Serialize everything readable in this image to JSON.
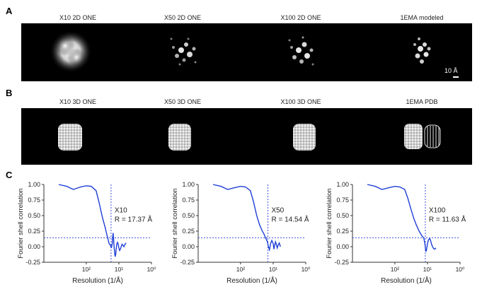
{
  "panels": {
    "a": {
      "letter": "A",
      "captions": [
        "X10 2D ONE",
        "X50 2D ONE",
        "X100 2D ONE",
        "1EMA modeled"
      ],
      "scale_bar_label": "10 Å"
    },
    "b": {
      "letter": "B",
      "captions": [
        "X10 3D ONE",
        "X50 3D ONE",
        "X100 3D ONE",
        "1EMA PDB"
      ]
    },
    "c": {
      "letter": "C"
    }
  },
  "colors": {
    "curve": "#1f3fd6",
    "threshold": "#3b4fd9",
    "strip": "#000000"
  },
  "chart_data": [
    {
      "type": "line",
      "title": "",
      "xlabel": "Resolution (1/Å)",
      "ylabel": "Fourier shell correlation",
      "xscale": "log",
      "xticks": [
        "10²",
        "10¹",
        "10⁰"
      ],
      "yticks": [
        "1.00",
        "0.75",
        "0.50",
        "0.25",
        "0.00",
        "-0.25"
      ],
      "ylim": [
        -0.25,
        1.0
      ],
      "annotation": {
        "name": "X10",
        "text": "R = 17.37 Å"
      },
      "threshold_y": 0.143,
      "cutoff_x": 17.37,
      "series": [
        {
          "x": [
            700,
            400,
            250,
            150,
            100,
            70,
            50,
            40,
            32,
            26,
            24,
            22,
            20,
            18,
            17,
            16,
            15.5,
            15,
            14.5,
            14,
            13.5,
            13,
            12.5,
            12,
            11.5,
            11,
            10.5,
            10,
            9.5,
            9,
            8.5,
            8,
            7.5,
            7,
            6.5,
            6
          ],
          "y": [
            1.0,
            0.97,
            0.92,
            0.96,
            0.98,
            0.97,
            0.9,
            0.7,
            0.47,
            0.3,
            0.22,
            0.14,
            0.05,
            0.02,
            -0.02,
            0.05,
            0.15,
            0.22,
            0.12,
            0.0,
            -0.1,
            -0.16,
            -0.12,
            -0.02,
            0.05,
            0.07,
            0.04,
            -0.02,
            -0.06,
            -0.04,
            0.0,
            0.04,
            0.02,
            0.0,
            0.04,
            0.06
          ]
        }
      ]
    },
    {
      "type": "line",
      "title": "",
      "xlabel": "Resolution (1/Å)",
      "ylabel": "Fourier shell correlation",
      "xscale": "log",
      "xticks": [
        "10²",
        "10¹",
        "10⁰"
      ],
      "yticks": [
        "1.00",
        "0.75",
        "0.50",
        "0.25",
        "0.00",
        "-0.25"
      ],
      "ylim": [
        -0.25,
        1.0
      ],
      "annotation": {
        "name": "X50",
        "text": "R = 14.54 Å"
      },
      "threshold_y": 0.143,
      "cutoff_x": 14.54,
      "series": [
        {
          "x": [
            700,
            400,
            250,
            150,
            100,
            70,
            50,
            40,
            32,
            26,
            22,
            19,
            17,
            15,
            14,
            13,
            12,
            11,
            10,
            9.5,
            9,
            8.5,
            8,
            7.5,
            7,
            6.5,
            6
          ],
          "y": [
            1.0,
            0.97,
            0.92,
            0.95,
            0.97,
            0.96,
            0.9,
            0.72,
            0.5,
            0.35,
            0.26,
            0.2,
            0.14,
            0.08,
            0.0,
            -0.05,
            0.05,
            0.1,
            0.05,
            -0.04,
            0.02,
            0.08,
            0.04,
            -0.02,
            0.03,
            0.06,
            0.0
          ]
        }
      ]
    },
    {
      "type": "line",
      "title": "",
      "xlabel": "Resolution (1/Å)",
      "ylabel": "Fourier shell correlation",
      "xscale": "log",
      "xticks": [
        "10²",
        "10¹",
        "10⁰"
      ],
      "yticks": [
        "1.00",
        "0.75",
        "0.50",
        "0.25",
        "0.00",
        "-0.25"
      ],
      "ylim": [
        -0.25,
        1.0
      ],
      "annotation": {
        "name": "X100",
        "text": "R = 11.63 Å"
      },
      "threshold_y": 0.143,
      "cutoff_x": 11.63,
      "series": [
        {
          "x": [
            700,
            400,
            250,
            150,
            100,
            70,
            50,
            40,
            32,
            26,
            22,
            18,
            15,
            13,
            12,
            11.5,
            11,
            10.5,
            10,
            9.5,
            9,
            8.5,
            8,
            7.5,
            7,
            6.5,
            6,
            5.5
          ],
          "y": [
            1.0,
            0.97,
            0.92,
            0.95,
            0.97,
            0.96,
            0.92,
            0.78,
            0.6,
            0.45,
            0.35,
            0.25,
            0.18,
            0.14,
            0.05,
            -0.04,
            -0.08,
            -0.02,
            0.05,
            0.1,
            0.12,
            0.13,
            0.1,
            0.04,
            0.0,
            -0.03,
            -0.04,
            -0.02
          ]
        }
      ]
    }
  ]
}
